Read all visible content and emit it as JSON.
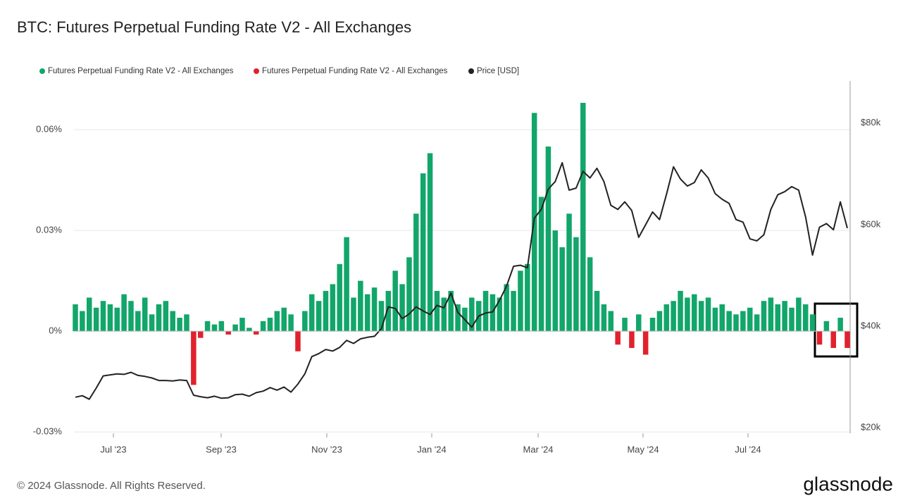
{
  "chart_data": {
    "type": "bar-line",
    "title": "BTC: Futures Perpetual Funding Rate V2 - All Exchanges",
    "footer": "© 2024 Glassnode. All Rights Reserved.",
    "brand": "glassnode",
    "xticks": [
      "Jul '23",
      "Sep '23",
      "Nov '23",
      "Jan '24",
      "Mar '24",
      "May '24",
      "Jul '24"
    ],
    "ylim": [
      -0.0304,
      0.0745
    ],
    "yticks": [
      {
        "value": -0.03,
        "label": "-0.03%"
      },
      {
        "value": 0,
        "label": "0%"
      },
      {
        "value": 0.03,
        "label": "0.03%"
      },
      {
        "value": 0.06,
        "label": "0.06%"
      }
    ],
    "y2lim": [
      18900,
      88300
    ],
    "y2ticks": [
      {
        "value": 20000,
        "label": "$20k"
      },
      {
        "value": 40000,
        "label": "$40k"
      },
      {
        "value": 60000,
        "label": "$60k"
      },
      {
        "value": 80000,
        "label": "$80k"
      }
    ],
    "grid": true,
    "series": [
      {
        "name": "Futures Perpetual Funding Rate V2 - All Exchanges",
        "color": "#12a66a",
        "values": [
          0.008,
          0.006,
          0.01,
          0.007,
          0.009,
          0.008,
          0.007,
          0.011,
          0.009,
          0.006,
          0.01,
          0.005,
          0.008,
          0.009,
          0.006,
          0.004,
          0.005,
          null,
          null,
          0.003,
          0.002,
          0.003,
          null,
          0.002,
          0.004,
          0.001,
          null,
          0.003,
          0.004,
          0.006,
          0.007,
          0.005,
          null,
          0.006,
          0.011,
          0.009,
          0.012,
          0.014,
          0.02,
          0.028,
          0.01,
          0.015,
          0.011,
          0.013,
          0.009,
          0.012,
          0.018,
          0.014,
          0.022,
          0.035,
          0.047,
          0.053,
          0.012,
          0.01,
          0.012,
          0.008,
          0.007,
          0.01,
          0.009,
          0.012,
          0.011,
          0.01,
          0.014,
          0.012,
          0.018,
          0.02,
          0.065,
          0.04,
          0.055,
          0.03,
          0.025,
          0.035,
          0.028,
          0.068,
          0.022,
          0.012,
          0.008,
          0.006,
          null,
          0.004,
          null,
          0.005,
          null,
          0.004,
          0.006,
          0.008,
          0.009,
          0.012,
          0.01,
          0.011,
          0.009,
          0.01,
          0.007,
          0.008,
          0.006,
          0.005,
          0.006,
          0.007,
          0.005,
          0.009,
          0.01,
          0.008,
          0.009,
          0.007,
          0.01,
          0.008,
          0.005,
          null,
          0.003,
          null,
          0.004,
          null
        ]
      },
      {
        "name": "Futures Perpetual Funding Rate V2 - All Exchanges",
        "color": "#e0222d",
        "values": [
          null,
          null,
          null,
          null,
          null,
          null,
          null,
          null,
          null,
          null,
          null,
          null,
          null,
          null,
          null,
          null,
          null,
          -0.016,
          -0.002,
          null,
          null,
          null,
          -0.001,
          null,
          null,
          null,
          -0.001,
          null,
          null,
          null,
          null,
          null,
          -0.006,
          null,
          null,
          null,
          null,
          null,
          null,
          null,
          null,
          null,
          null,
          null,
          null,
          null,
          null,
          null,
          null,
          null,
          null,
          null,
          null,
          null,
          null,
          null,
          null,
          null,
          null,
          null,
          null,
          null,
          null,
          null,
          null,
          null,
          null,
          null,
          null,
          null,
          null,
          null,
          null,
          null,
          null,
          null,
          null,
          null,
          -0.004,
          null,
          -0.005,
          null,
          -0.007,
          null,
          null,
          null,
          null,
          null,
          null,
          null,
          null,
          null,
          null,
          null,
          null,
          null,
          null,
          null,
          null,
          null,
          null,
          null,
          null,
          null,
          null,
          null,
          null,
          -0.004,
          null,
          -0.005,
          null,
          -0.005
        ]
      },
      {
        "name": "Price [USD]",
        "color": "#222222",
        "axis": "y2",
        "values": [
          26000,
          26300,
          25600,
          27800,
          30200,
          30400,
          30600,
          30500,
          30900,
          30300,
          30100,
          29800,
          29300,
          29300,
          29200,
          29400,
          29300,
          26400,
          26100,
          25900,
          26200,
          25800,
          25900,
          26500,
          26600,
          26200,
          26900,
          27200,
          27900,
          27400,
          28000,
          27000,
          28600,
          30600,
          34000,
          34600,
          35400,
          35100,
          35800,
          37200,
          36600,
          37500,
          37800,
          38000,
          39500,
          43800,
          43500,
          41500,
          42400,
          43800,
          43000,
          42300,
          44100,
          43600,
          46500,
          42700,
          41300,
          39800,
          42000,
          42600,
          42800,
          45100,
          47900,
          51800,
          52000,
          51500,
          61300,
          63000,
          67000,
          68500,
          72200,
          66800,
          67200,
          70500,
          69200,
          71100,
          68500,
          63800,
          63000,
          64500,
          62800,
          57500,
          60000,
          62500,
          61000,
          66000,
          71400,
          69000,
          67600,
          68300,
          70800,
          69200,
          66100,
          65000,
          64200,
          61000,
          60500,
          57200,
          56800,
          58000,
          63000,
          65900,
          66500,
          67500,
          66800,
          61500,
          54000,
          59500,
          60200,
          59000,
          64500,
          59300
        ]
      }
    ]
  }
}
